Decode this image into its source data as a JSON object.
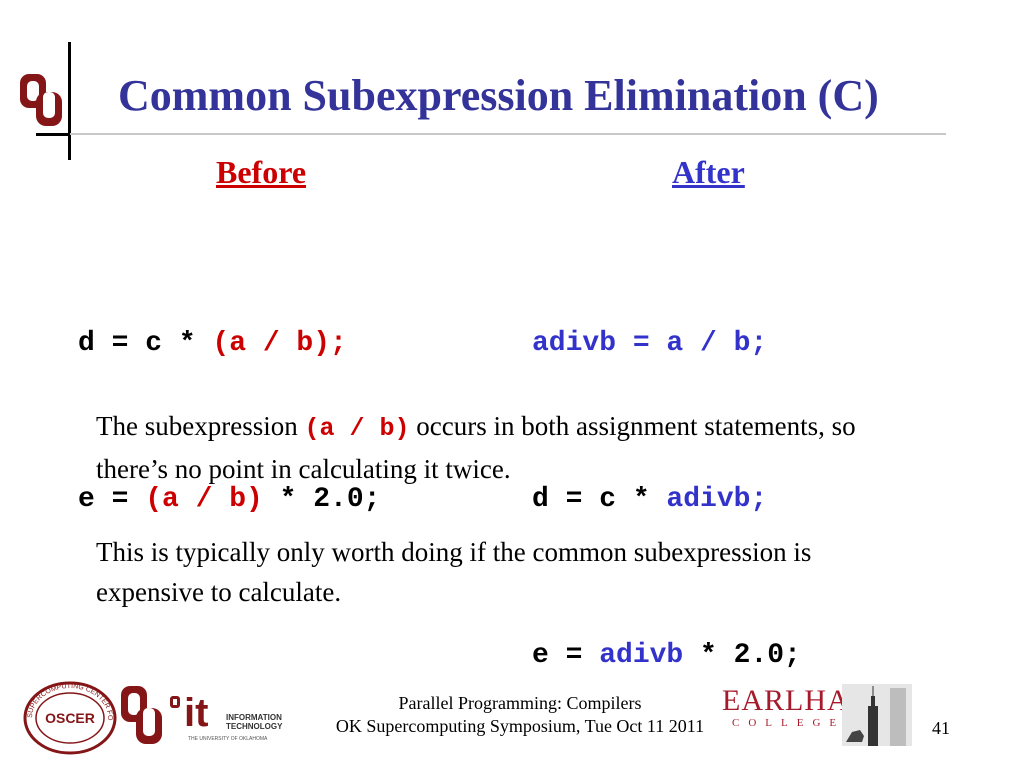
{
  "title": "Common Subexpression Elimination (C)",
  "columns": {
    "before_heading": "Before",
    "after_heading": "After"
  },
  "before_code": [
    {
      "plain_start": "d = c * ",
      "highlight": "(a / b);",
      "plain_end": ""
    },
    {
      "plain_start": "e = ",
      "highlight": "(a / b)",
      "plain_end": " * 2.0;"
    }
  ],
  "after_code": [
    {
      "plain_start": "",
      "highlight": "adivb = a / b;",
      "plain_end": ""
    },
    {
      "plain_start": "d = c * ",
      "highlight": "adivb;",
      "plain_end": ""
    },
    {
      "plain_start": "e = ",
      "highlight": "adivb",
      "plain_end": " * 2.0;"
    }
  ],
  "paragraph1": {
    "start": "The subexpression ",
    "code": "(a / b)",
    "end": " occurs in both assignment statements, so there’s no point in calculating it twice."
  },
  "paragraph2": "This is typically only worth doing if the common subexpression is expensive to calculate.",
  "footer": {
    "line1": "Parallel Programming: Compilers",
    "line2": "OK Supercomputing Symposium, Tue Oct 11 2011",
    "page_number": "41"
  },
  "logos": {
    "oscer": "OSCER",
    "oscer_ring": "SUPERCOMPUTING CENTER FOR EDUCATION & RESEARCH",
    "ou": "OU",
    "it_big": "it",
    "it_text_line1": "INFORMATION",
    "it_text_line2": "TECHNOLOGY",
    "it_text_line3": "THE UNIVERSITY OF OKLAHOMA",
    "earlham": "EARLHAM",
    "college": "COLLEGE"
  },
  "colors": {
    "title": "#333399",
    "before": "#cc0000",
    "after": "#3333cc",
    "ou_crimson": "#841617"
  }
}
